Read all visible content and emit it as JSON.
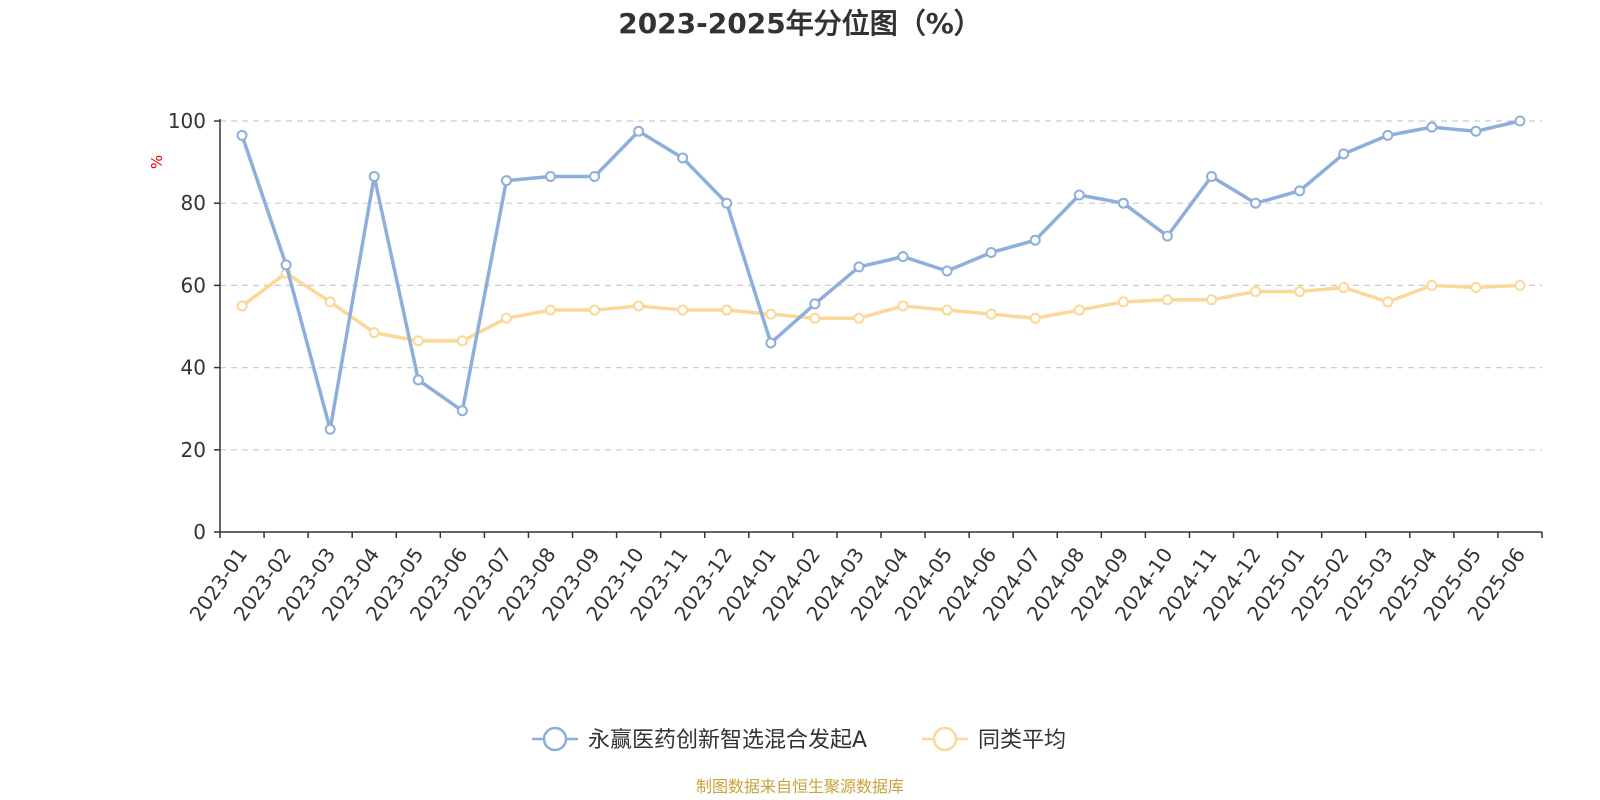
{
  "chart_data": {
    "type": "line",
    "title": "2023-2025年分位图（%）",
    "ylabel": "%",
    "xlabel": "",
    "ylim": [
      0,
      100
    ],
    "yticks": [
      0,
      20,
      40,
      60,
      80,
      100
    ],
    "grid": true,
    "legend_position": "bottom-center",
    "categories": [
      "2023-01",
      "2023-02",
      "2023-03",
      "2023-04",
      "2023-05",
      "2023-06",
      "2023-07",
      "2023-08",
      "2023-09",
      "2023-10",
      "2023-11",
      "2023-12",
      "2024-01",
      "2024-02",
      "2024-03",
      "2024-04",
      "2024-05",
      "2024-06",
      "2024-07",
      "2024-08",
      "2024-09",
      "2024-10",
      "2024-11",
      "2024-12",
      "2025-01",
      "2025-02",
      "2025-03",
      "2025-04",
      "2025-05",
      "2025-06"
    ],
    "series": [
      {
        "name": "永赢医药创新智选混合发起A",
        "color": "#8eaedb",
        "values": [
          96.5,
          65,
          25,
          86.5,
          37,
          29.5,
          85.5,
          86.5,
          86.5,
          97.5,
          91,
          80,
          46,
          55.5,
          64.5,
          67,
          63.5,
          68,
          71,
          82,
          80,
          72,
          86.5,
          80,
          83,
          92,
          96.5,
          98.5,
          97.5,
          100
        ]
      },
      {
        "name": "同类平均",
        "color": "#fbd898",
        "values": [
          55,
          63,
          56,
          48.5,
          46.5,
          46.5,
          52,
          54,
          54,
          55,
          54,
          54,
          53,
          52,
          52,
          55,
          54,
          53,
          52,
          54,
          56,
          56.5,
          56.5,
          58.5,
          58.5,
          59.5,
          56,
          60,
          59.5,
          60
        ]
      }
    ]
  },
  "source_note": "制图数据来自恒生聚源数据库"
}
